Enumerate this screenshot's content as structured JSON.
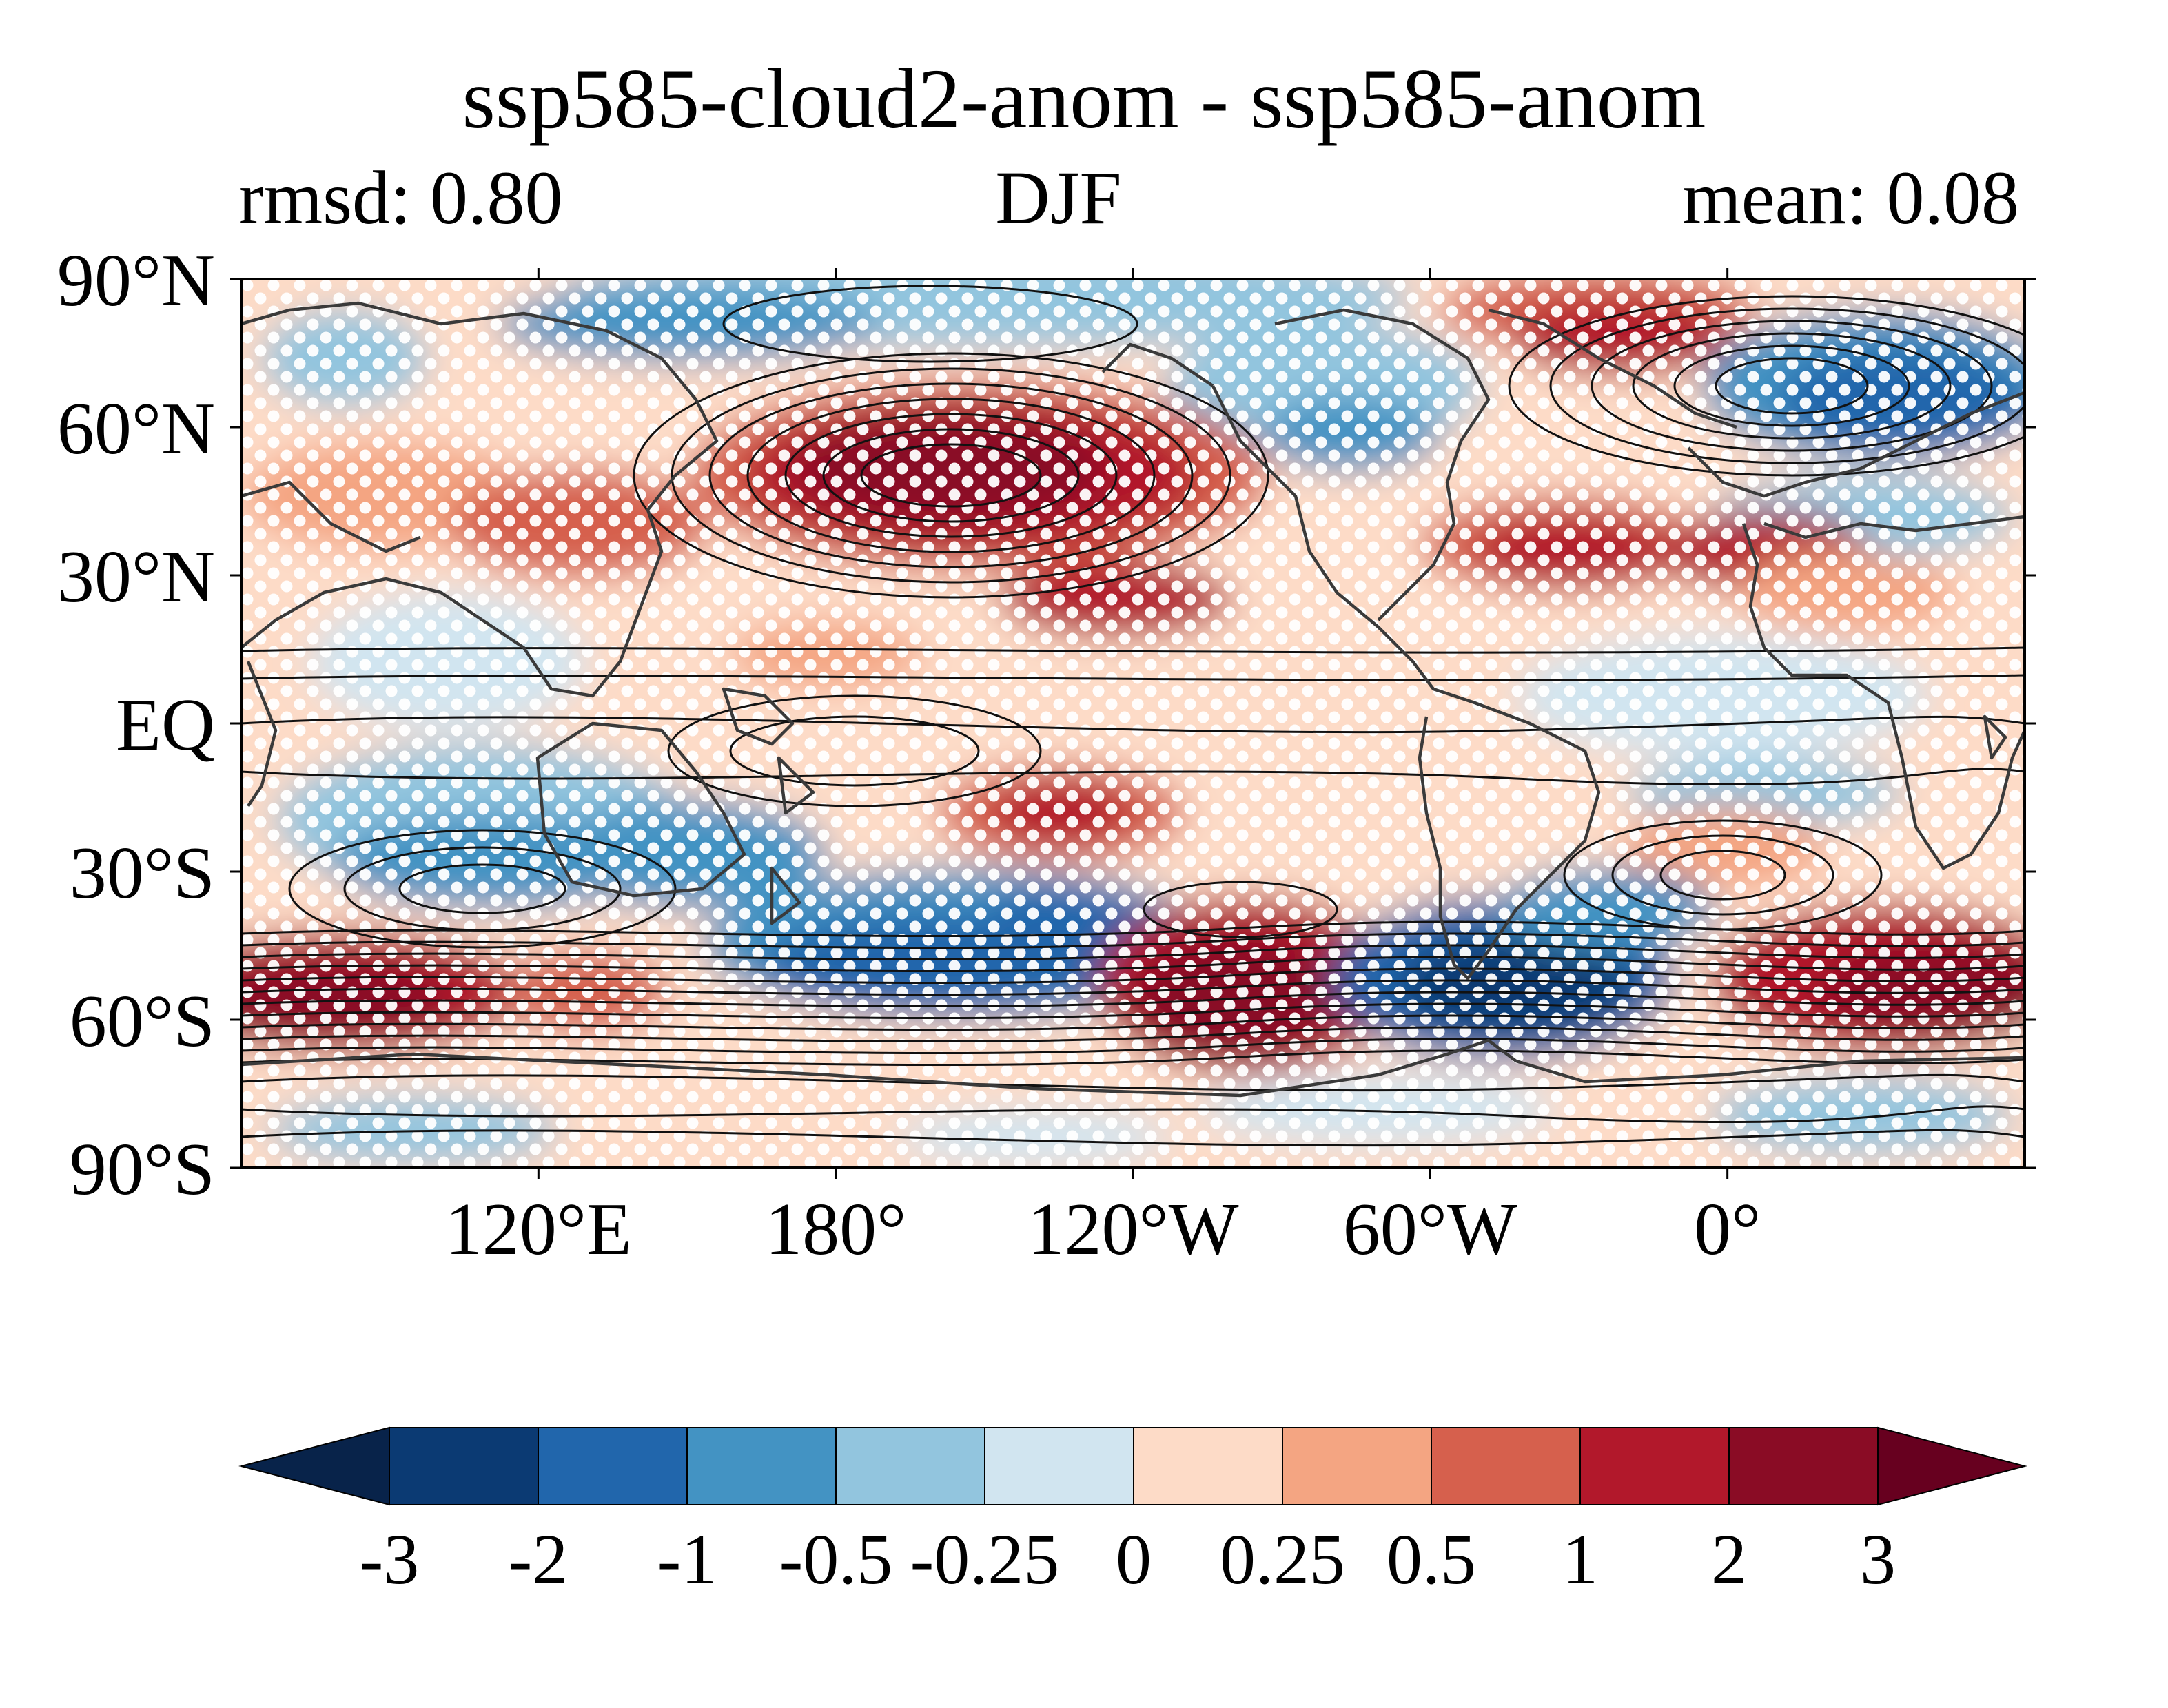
{
  "title": "ssp585-cloud2-anom - ssp585-anom",
  "subtitle_left": "rmsd: 0.80",
  "subtitle_center": "DJF",
  "subtitle_right": "mean: 0.08",
  "map": {
    "projection": "PlateCarree",
    "central_longitude": "180°",
    "y_ticks": [
      "90°N",
      "60°N",
      "30°N",
      "EQ",
      "30°S",
      "60°S",
      "90°S"
    ],
    "x_ticks": [
      "120°E",
      "180°",
      "120°W",
      "60°W",
      "0°"
    ],
    "features": [
      "coastlines",
      "black contour lines",
      "white stippling dots"
    ]
  },
  "colorbar": {
    "levels": [
      "-3",
      "-2",
      "-1",
      "-0.5",
      "-0.25",
      "0",
      "0.25",
      "0.5",
      "1",
      "2",
      "3"
    ],
    "extend": "both",
    "colors": [
      "#08234a",
      "#0b3a73",
      "#2166ac",
      "#4393c3",
      "#92c5de",
      "#d1e5f0",
      "#fddbc7",
      "#f4a582",
      "#d6604d",
      "#b2182b",
      "#8a0c25",
      "#67001f"
    ]
  },
  "palette": {
    "strong_pos": "#8a0c25",
    "pos": "#b2182b",
    "mid_pos": "#d6604d",
    "weak_pos": "#f4a582",
    "faint_pos": "#fddbc7",
    "faint_neg": "#d1e5f0",
    "weak_neg": "#92c5de",
    "mid_neg": "#4393c3",
    "neg": "#2166ac",
    "strong_neg": "#0b3a73"
  }
}
